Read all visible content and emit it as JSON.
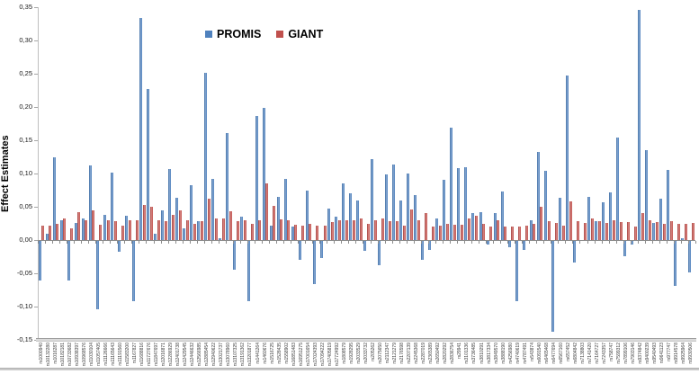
{
  "legend": {
    "items": [
      {
        "label": "PROMIS",
        "color": "#4F81BD"
      },
      {
        "label": "GIANT",
        "color": "#C0504D"
      }
    ]
  },
  "y_axis": {
    "title": "Effect Estimates",
    "min": -0.15,
    "max": 0.35,
    "step": 0.05,
    "tick_labels": [
      "0,35",
      "0,30",
      "0,25",
      "0,20",
      "0,15",
      "0,10",
      "0,05",
      "0,00",
      "-0,05",
      "-0,10",
      "-0,15"
    ],
    "tick_values": [
      0.35,
      0.3,
      0.25,
      0.2,
      0.15,
      0.1,
      0.05,
      0.0,
      -0.05,
      -0.1,
      -0.15
    ]
  },
  "chart_data": {
    "type": "bar",
    "title": "",
    "xlabel": "",
    "ylabel": "Effect Estimates",
    "ylim": [
      -0.15,
      0.35
    ],
    "grid": false,
    "legend_position": "top-center",
    "categories": [
      "rs1000940",
      "rs10132280",
      "rs1016287",
      "rs10182181",
      "rs10733682",
      "rs10938397",
      "rs10968576",
      "rs11030104",
      "rs11057405",
      "rs11126666",
      "rs11165643",
      "rs11191560",
      "rs11583200",
      "rs1167827",
      "rs11688816",
      "rs11727676",
      "rs11847697",
      "rs12016871",
      "rs12286929",
      "rs12401738",
      "rs12429545",
      "rs12446632",
      "rs12566985",
      "rs12885454",
      "rs12940622",
      "rs13021737",
      "rs13078960",
      "rs13107325",
      "rs13191362",
      "rs13201877",
      "rs1441264",
      "rs1460676",
      "rs1516725",
      "rs1528435",
      "rs1558902",
      "rs16851483",
      "rs16951275",
      "rs17001654",
      "rs17024393",
      "rs17094222",
      "rs17405819",
      "rs17724992",
      "rs1808579",
      "rs1928295",
      "rs2033529",
      "rs2033732",
      "rs205262",
      "rs2075650",
      "rs2112347",
      "rs2121279",
      "rs2176598",
      "rs2207139",
      "rs2245368",
      "rs2287019",
      "rs2365389",
      "rs2650492",
      "rs2820292",
      "rs2836754",
      "rs29941",
      "rs3101336",
      "rs3736485",
      "rs3810291",
      "rs3817334",
      "rs3849570",
      "rs3888190",
      "rs4256980",
      "rs4740619",
      "rs4787491",
      "rs543874",
      "rs6091540",
      "rs6465468",
      "rs6477694",
      "rs6567160",
      "rs657452",
      "rs6804842",
      "rs7138803",
      "rs7141420",
      "rs7164727",
      "rs7243357",
      "rs758747",
      "rs7599312",
      "rs7899106",
      "rs7903146",
      "rs9374842",
      "rs9400239",
      "rs9540493",
      "rs9641123",
      "rs977747",
      "rs9914578",
      "rs9925964",
      "rs9930506"
    ],
    "series": [
      {
        "name": "PROMIS",
        "color": "#4F81BD",
        "values": [
          -0.06,
          0.01,
          0.124,
          0.03,
          -0.06,
          0.026,
          0.032,
          0.112,
          -0.103,
          0.038,
          0.102,
          -0.016,
          0.037,
          -0.091,
          0.334,
          0.227,
          0.01,
          0.045,
          0.107,
          0.063,
          0.018,
          0.082,
          0.028,
          0.252,
          0.092,
          0.003,
          0.161,
          -0.043,
          0.035,
          -0.09,
          0.186,
          0.198,
          0.022,
          0.065,
          0.092,
          0.02,
          -0.028,
          0.075,
          -0.065,
          -0.025,
          0.047,
          0.035,
          0.085,
          0.07,
          0.059,
          -0.015,
          0.122,
          -0.036,
          0.098,
          0.113,
          0.059,
          0.1,
          0.068,
          -0.028,
          -0.013,
          0.033,
          0.09,
          0.169,
          0.108,
          0.109,
          0.041,
          0.042,
          -0.005,
          0.04,
          0.073,
          -0.01,
          -0.09,
          -0.013,
          0.03,
          0.133,
          0.104,
          -0.137,
          0.063,
          0.247,
          -0.033,
          0.0,
          0.065,
          0.028,
          0.057,
          0.071,
          0.154,
          -0.023,
          -0.005,
          0.346,
          0.135,
          0.026,
          0.062,
          0.106,
          -0.068,
          0.003,
          -0.047
        ]
      },
      {
        "name": "GIANT",
        "color": "#C0504D",
        "values": [
          0.022,
          0.022,
          0.025,
          0.033,
          0.018,
          0.042,
          0.03,
          0.044,
          0.023,
          0.03,
          0.029,
          0.022,
          0.03,
          0.03,
          0.053,
          0.05,
          0.03,
          0.028,
          0.038,
          0.044,
          0.03,
          0.025,
          0.028,
          0.062,
          0.032,
          0.033,
          0.043,
          0.028,
          0.03,
          0.025,
          0.03,
          0.085,
          0.051,
          0.031,
          0.03,
          0.023,
          0.022,
          0.024,
          0.022,
          0.022,
          0.027,
          0.03,
          0.03,
          0.03,
          0.033,
          0.025,
          0.03,
          0.032,
          0.029,
          0.029,
          0.021,
          0.046,
          0.03,
          0.04,
          0.02,
          0.022,
          0.024,
          0.023,
          0.023,
          0.033,
          0.036,
          0.025,
          0.02,
          0.03,
          0.02,
          0.02,
          0.02,
          0.022,
          0.025,
          0.05,
          0.029,
          0.026,
          0.021,
          0.058,
          0.029,
          0.026,
          0.033,
          0.028,
          0.026,
          0.03,
          0.027,
          0.027,
          0.02,
          0.04,
          0.03,
          0.027,
          0.024,
          0.028,
          0.024,
          0.024,
          0.026
        ]
      }
    ]
  }
}
